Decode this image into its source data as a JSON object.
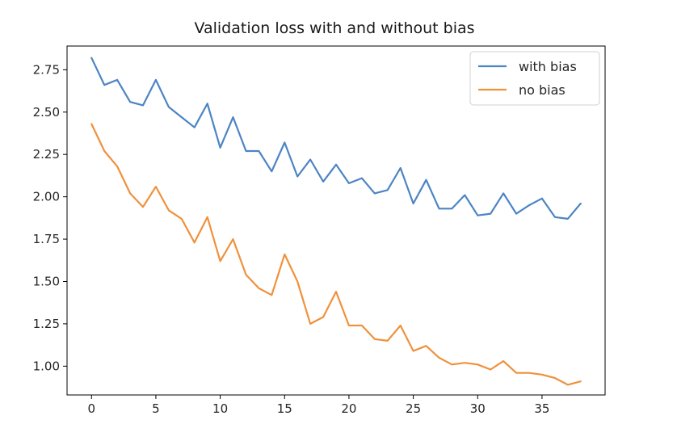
{
  "chart_data": {
    "type": "line",
    "title": "Validation loss with and without bias",
    "xlabel": "",
    "ylabel": "",
    "xlim": [
      -1.9,
      39.9
    ],
    "ylim": [
      0.83,
      2.89
    ],
    "xticks": [
      0,
      5,
      10,
      15,
      20,
      25,
      30,
      35
    ],
    "xtick_labels": [
      "0",
      "5",
      "10",
      "15",
      "20",
      "25",
      "30",
      "35"
    ],
    "yticks": [
      1.0,
      1.25,
      1.5,
      1.75,
      2.0,
      2.25,
      2.5,
      2.75
    ],
    "ytick_labels": [
      "1.00",
      "1.25",
      "1.50",
      "1.75",
      "2.00",
      "2.25",
      "2.50",
      "2.75"
    ],
    "grid": false,
    "legend": "top-right",
    "x": [
      0,
      1,
      2,
      3,
      4,
      5,
      6,
      7,
      8,
      9,
      10,
      11,
      12,
      13,
      14,
      15,
      16,
      17,
      18,
      19,
      20,
      21,
      22,
      23,
      24,
      25,
      26,
      27,
      28,
      29,
      30,
      31,
      32,
      33,
      34,
      35,
      36,
      37,
      38
    ],
    "series": [
      {
        "name": "with bias",
        "color": "#4c84c4",
        "values": [
          2.82,
          2.66,
          2.69,
          2.56,
          2.54,
          2.69,
          2.53,
          2.47,
          2.41,
          2.55,
          2.29,
          2.47,
          2.27,
          2.27,
          2.15,
          2.32,
          2.12,
          2.22,
          2.09,
          2.19,
          2.08,
          2.11,
          2.02,
          2.04,
          2.17,
          1.96,
          2.1,
          1.93,
          1.93,
          2.01,
          1.89,
          1.9,
          2.02,
          1.9,
          1.95,
          1.99,
          1.88,
          1.87,
          1.96
        ]
      },
      {
        "name": "no bias",
        "color": "#f0913c",
        "values": [
          2.43,
          2.27,
          2.18,
          2.02,
          1.94,
          2.06,
          1.92,
          1.87,
          1.73,
          1.88,
          1.62,
          1.75,
          1.54,
          1.46,
          1.42,
          1.66,
          1.5,
          1.25,
          1.29,
          1.44,
          1.24,
          1.24,
          1.16,
          1.15,
          1.24,
          1.09,
          1.12,
          1.05,
          1.01,
          1.02,
          1.01,
          0.98,
          1.03,
          0.96,
          0.96,
          0.95,
          0.93,
          0.89,
          0.91
        ]
      }
    ]
  }
}
